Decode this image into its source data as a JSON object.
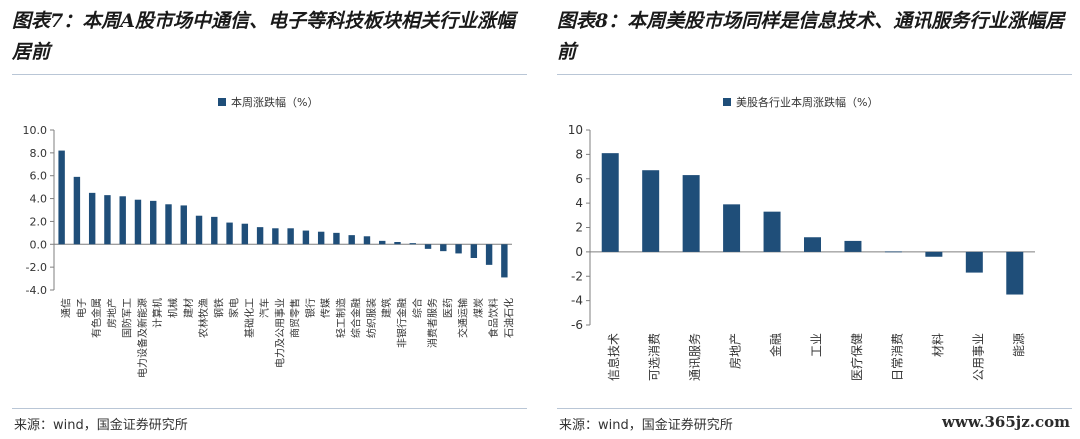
{
  "charts": [
    {
      "figure_title": "图表7：本周A股市场中通信、电子等科技板块相关行业涨幅居前",
      "source": "来源：wind，国金证券研究所",
      "chart_data": {
        "type": "bar",
        "legend": "本周涨跌幅（%）",
        "legend_position": "top-center",
        "ylim": [
          -4.0,
          10.0
        ],
        "yticks": [
          "10.0",
          "8.0",
          "6.0",
          "4.0",
          "2.0",
          "0.0",
          "-2.0",
          "-4.0"
        ],
        "ytick_values": [
          10,
          8,
          6,
          4,
          2,
          0,
          -2,
          -4
        ],
        "categories": [
          "通信",
          "电子",
          "有色金属",
          "房地产",
          "国防军工",
          "电力设备及新能源",
          "计算机",
          "机械",
          "建材",
          "农林牧渔",
          "钢铁",
          "家电",
          "基础化工",
          "汽车",
          "电力及公用事业",
          "商贸零售",
          "银行",
          "传媒",
          "轻工制造",
          "综合金融",
          "纺织服装",
          "建筑",
          "非银行金融",
          "综合",
          "消费者服务",
          "医药",
          "交通运输",
          "煤炭",
          "食品饮料",
          "石油石化"
        ],
        "values": [
          8.2,
          5.9,
          4.5,
          4.3,
          4.2,
          3.9,
          3.8,
          3.5,
          3.4,
          2.5,
          2.4,
          1.9,
          1.8,
          1.5,
          1.4,
          1.4,
          1.2,
          1.1,
          1.0,
          0.8,
          0.7,
          0.3,
          0.2,
          0.1,
          -0.4,
          -0.6,
          -0.8,
          -1.2,
          -1.8,
          -2.9
        ],
        "bar_color": "#1f4e79",
        "grid": false
      }
    },
    {
      "figure_title": "图表8：本周美股市场同样是信息技术、通讯服务行业涨幅居前",
      "source": "来源：wind，国金证券研究所",
      "chart_data": {
        "type": "bar",
        "legend": "美股各行业本周涨跌幅（%）",
        "legend_position": "top-center",
        "ylim": [
          -6,
          10
        ],
        "yticks": [
          "10",
          "8",
          "6",
          "4",
          "2",
          "0",
          "-2",
          "-4",
          "-6"
        ],
        "ytick_values": [
          10,
          8,
          6,
          4,
          2,
          0,
          -2,
          -4,
          -6
        ],
        "categories": [
          "信息技术",
          "可选消费",
          "通讯服务",
          "房地产",
          "金融",
          "工业",
          "医疗保健",
          "日常消费",
          "材料",
          "公用事业",
          "能源"
        ],
        "values": [
          8.1,
          6.7,
          6.3,
          3.9,
          3.3,
          1.2,
          0.9,
          0.0,
          -0.4,
          -1.7,
          -3.5
        ],
        "bar_color": "#1f4e79",
        "grid": false
      }
    }
  ],
  "watermark": "www.365jz.com"
}
